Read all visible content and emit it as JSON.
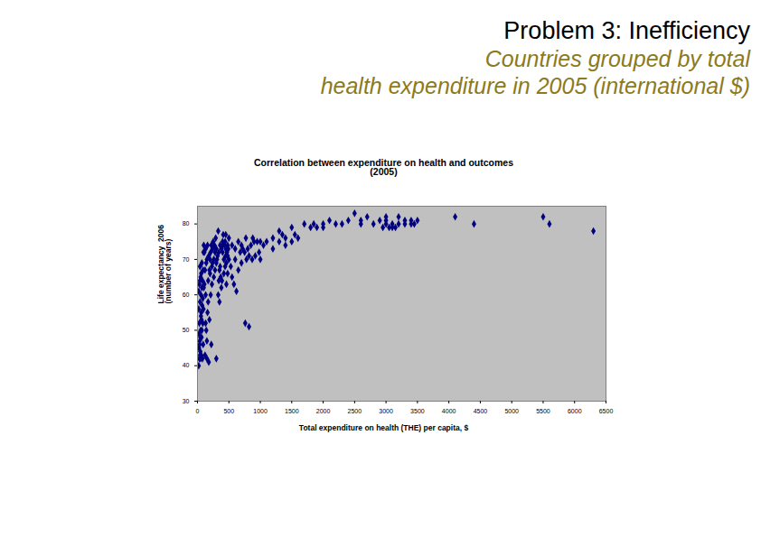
{
  "header": {
    "title": "Problem 3:  Inefficiency",
    "subtitle": "Countries grouped by total\nhealth expenditure in 2005 (international $)"
  },
  "chart_data": {
    "type": "scatter",
    "title": "Correlation between expenditure on health and outcomes\n(2005)",
    "x_label": "Total expenditure on health (THE) per capita, $",
    "y_label": "Life expectancy  2006\n(number of years)",
    "color": "#000080",
    "marker": "diamond",
    "grid": false,
    "xlim": [
      0,
      6500
    ],
    "xticks": [
      0,
      500,
      1000,
      1500,
      2000,
      2500,
      3000,
      3500,
      4000,
      4500,
      5000,
      5500,
      6000,
      6500
    ],
    "ylim": [
      30,
      85
    ],
    "yticks": [
      30,
      40,
      50,
      60,
      70,
      80
    ],
    "x": [
      2500,
      2400,
      2600,
      2700,
      2100,
      2200,
      2000,
      1900,
      2300,
      2000,
      2900,
      3000,
      3000,
      3100,
      3200,
      3300,
      3200,
      3400,
      3500,
      3400,
      3100,
      3300,
      2950,
      3050,
      3150,
      3450,
      4100,
      4400,
      5500,
      5600,
      6300,
      3000,
      2800,
      2600,
      1700,
      1500,
      1400,
      1300,
      1300,
      1200,
      1100,
      1000,
      1050,
      1200,
      1400,
      1500,
      1600,
      1550,
      1800,
      1850,
      1350,
      900,
      850,
      950,
      800,
      750,
      700,
      650,
      600,
      550,
      500,
      450,
      400,
      780,
      820,
      870,
      600,
      700,
      650,
      550,
      580,
      620,
      760,
      820,
      530,
      480,
      450,
      720,
      680,
      920,
      980,
      1000,
      770,
      880,
      20,
      30,
      40,
      25,
      35,
      45,
      50,
      30,
      60,
      20,
      40,
      55,
      70,
      30,
      80,
      50,
      60,
      90,
      40,
      70,
      20,
      35,
      45,
      65,
      75,
      85,
      95,
      100,
      60,
      80,
      90,
      70,
      55,
      25,
      50,
      65,
      85,
      95,
      40,
      100,
      120,
      150,
      180,
      220,
      300,
      140,
      160,
      130,
      170,
      200,
      230,
      260,
      280,
      300,
      150,
      180,
      210,
      240,
      270,
      120,
      140,
      190,
      110,
      130,
      160,
      250,
      290,
      220,
      200,
      240,
      260,
      280,
      300,
      230,
      110,
      170,
      190,
      210,
      150,
      130,
      320,
      340,
      360,
      380,
      400,
      420,
      440,
      460,
      480,
      350,
      370,
      390,
      330,
      410,
      430,
      450,
      470,
      490,
      310,
      360,
      380,
      350,
      330,
      400,
      440,
      480,
      500,
      460,
      420,
      340
    ],
    "values": [
      83,
      81,
      80,
      82,
      81,
      80,
      80,
      79,
      80,
      79,
      81,
      82,
      80,
      79,
      80,
      80,
      82,
      81,
      81,
      80,
      80,
      81,
      79,
      79,
      79,
      80,
      82,
      80,
      82,
      80,
      78,
      81,
      80,
      81,
      80,
      79,
      76,
      78,
      75,
      76,
      75,
      75,
      74,
      73,
      74,
      75,
      76,
      77,
      79,
      80,
      77,
      75,
      74,
      75,
      73,
      72,
      74,
      75,
      73,
      74,
      76,
      77,
      75,
      70,
      71,
      70,
      70,
      69,
      67,
      65,
      63,
      61,
      52,
      51,
      68,
      71,
      73,
      73,
      72,
      71,
      72,
      70,
      76,
      76,
      40,
      42,
      43,
      45,
      47,
      48,
      50,
      52,
      55,
      56,
      58,
      60,
      62,
      63,
      64,
      65,
      66,
      67,
      68,
      69,
      61,
      46,
      44,
      53,
      57,
      59,
      72,
      74,
      43,
      42,
      46,
      50,
      54,
      49,
      42,
      48,
      52,
      56,
      64,
      62,
      43,
      42,
      41,
      46,
      42,
      50,
      55,
      60,
      64,
      66,
      68,
      70,
      72,
      73,
      70,
      71,
      72,
      73,
      74,
      67,
      69,
      67,
      72,
      73,
      74,
      75,
      76,
      74,
      70,
      69,
      65,
      67,
      69,
      63,
      63,
      58,
      53,
      60,
      47,
      52,
      71,
      72,
      74,
      73,
      72,
      70,
      68,
      69,
      66,
      67,
      65,
      64,
      78,
      77,
      74,
      71,
      72,
      73,
      70,
      68,
      62,
      58,
      60,
      74,
      75,
      74,
      70,
      63,
      66,
      64
    ]
  }
}
